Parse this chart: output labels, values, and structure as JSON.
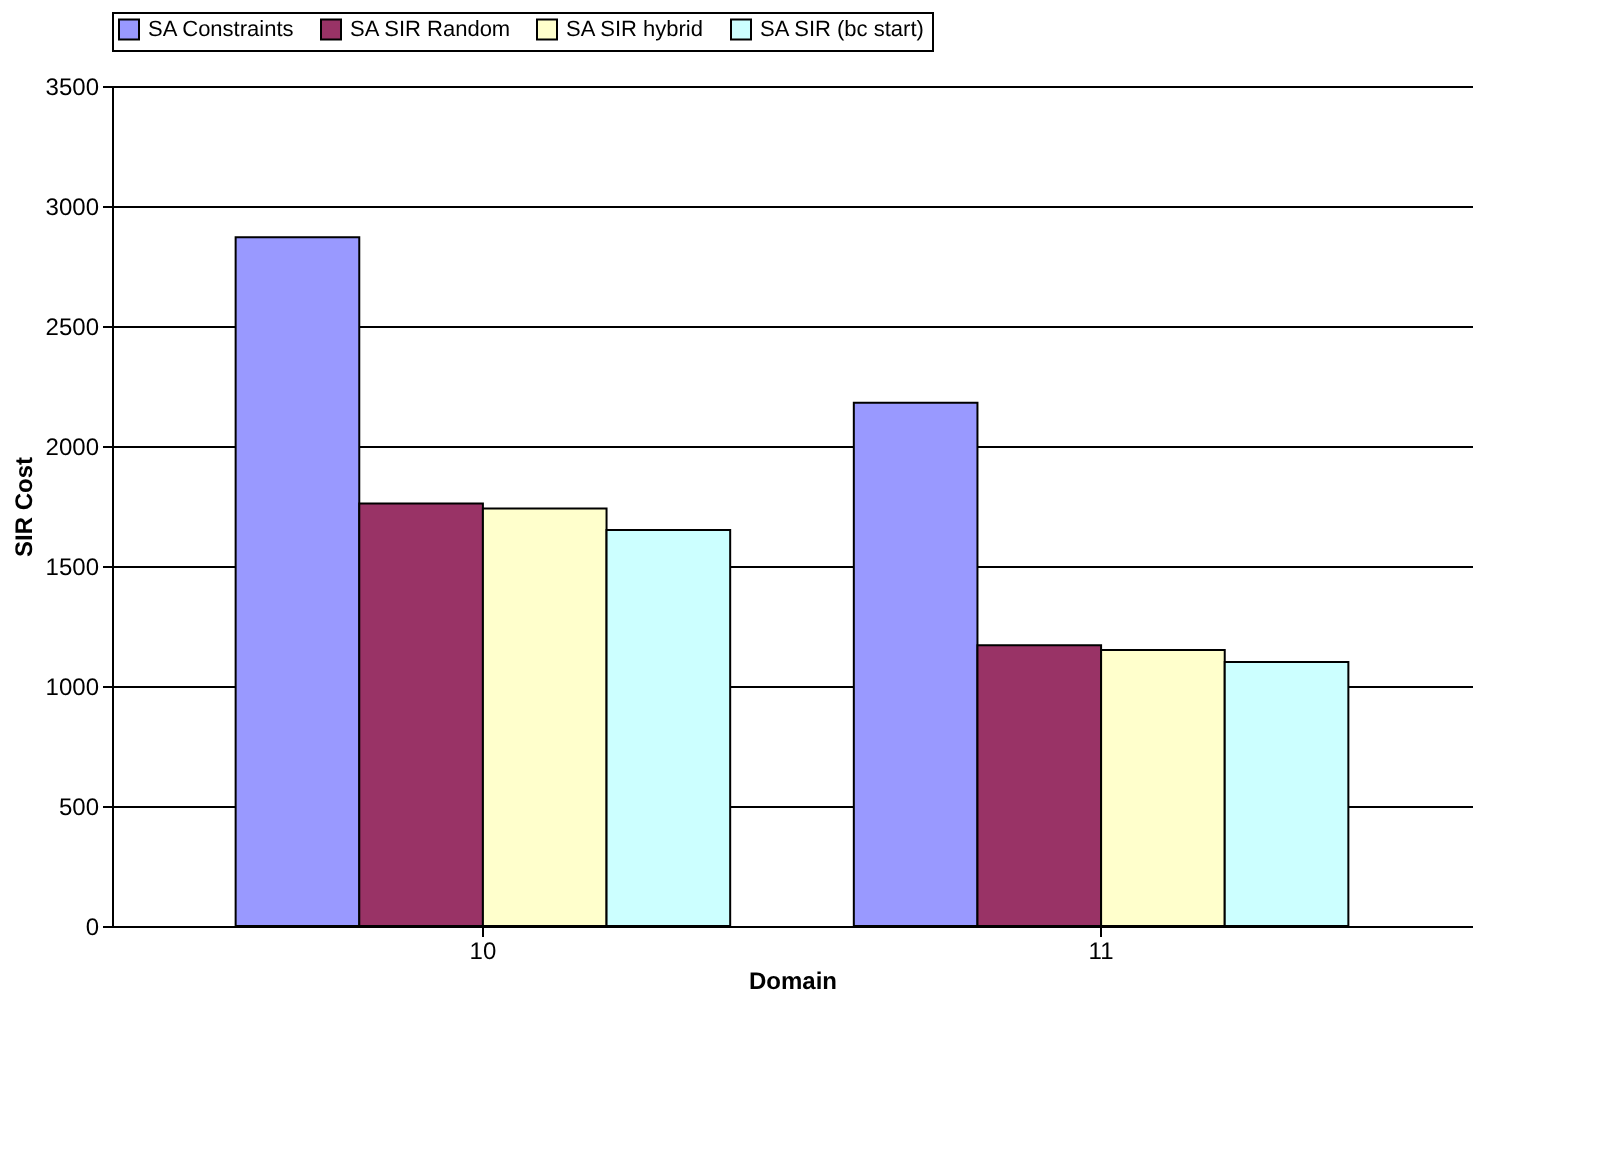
{
  "chart_data": {
    "type": "bar",
    "xlabel": "Domain",
    "ylabel": "SIR Cost",
    "categories": [
      "10",
      "11"
    ],
    "series": [
      {
        "name": "SA Constraints",
        "color": "#9999ff",
        "values": [
          2870,
          2180
        ]
      },
      {
        "name": "SA SIR Random",
        "color": "#993366",
        "values": [
          1760,
          1170
        ]
      },
      {
        "name": "SA SIR hybrid",
        "color": "#ffffcc",
        "values": [
          1740,
          1150
        ]
      },
      {
        "name": "SA SIR (bc start)",
        "color": "#ccffff",
        "values": [
          1650,
          1100
        ]
      }
    ],
    "ylim": [
      0,
      3500
    ],
    "yticks": [
      0,
      500,
      1000,
      1500,
      2000,
      2500,
      3000,
      3500
    ],
    "grid": "y",
    "legend": "top"
  }
}
